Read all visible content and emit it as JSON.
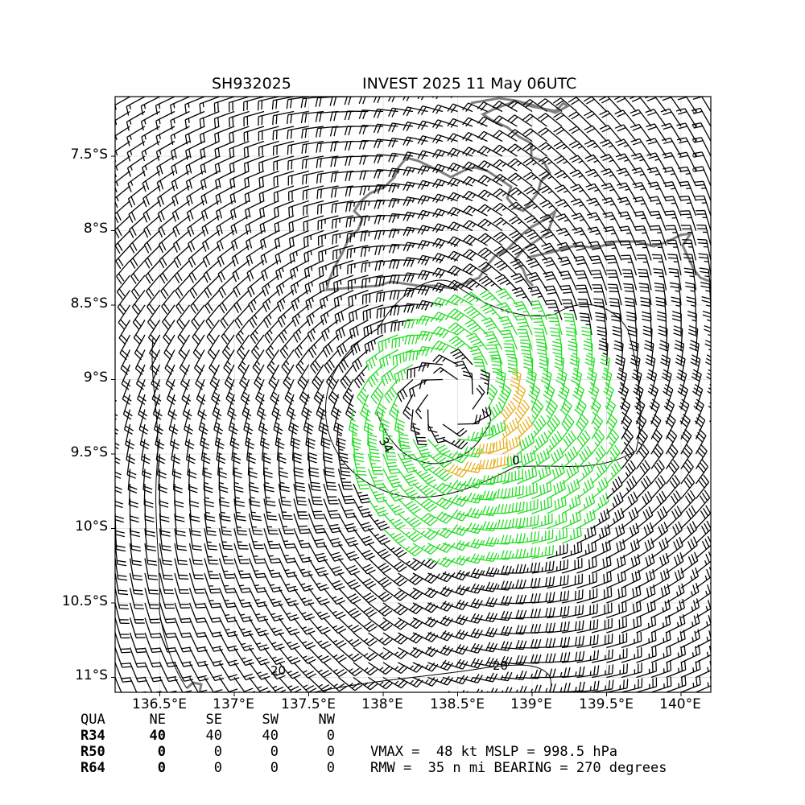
{
  "title_left": "SH932025",
  "title_right": "INVEST 2025 11 May 06UTC",
  "map": {
    "lon_range": [
      136.2,
      140.2
    ],
    "lat_range": [
      -11.1,
      -7.1
    ],
    "lon_ticks": [
      {
        "value": 136.5,
        "label": "136.5°E"
      },
      {
        "value": 137.0,
        "label": "137°E"
      },
      {
        "value": 137.5,
        "label": "137.5°E"
      },
      {
        "value": 138.0,
        "label": "138°E"
      },
      {
        "value": 138.5,
        "label": "138.5°E"
      },
      {
        "value": 139.0,
        "label": "139°E"
      },
      {
        "value": 139.5,
        "label": "139.5°E"
      },
      {
        "value": 140.0,
        "label": "140°E"
      }
    ],
    "lat_ticks": [
      {
        "value": -7.5,
        "label": "7.5°S"
      },
      {
        "value": -8.0,
        "label": "8°S"
      },
      {
        "value": -8.5,
        "label": "8.5°S"
      },
      {
        "value": -9.0,
        "label": "9°S"
      },
      {
        "value": -9.5,
        "label": "9.5°S"
      },
      {
        "value": -10.0,
        "label": "10°S"
      },
      {
        "value": -10.5,
        "label": "10.5°S"
      },
      {
        "value": -11.0,
        "label": "11°S"
      }
    ],
    "grid": true,
    "storm_center": {
      "lon": 138.45,
      "lat": -9.15
    },
    "contour_labels": [
      "34",
      "20",
      "20",
      "0"
    ],
    "wind_colors": {
      "below_34": "#000000",
      "r34": "#22dd22",
      "r50": "#e8b020"
    },
    "coastline_color": "#808080"
  },
  "table": {
    "header": [
      "QUA",
      "NE",
      "SE",
      "SW",
      "NW"
    ],
    "rows": [
      {
        "label": "R34",
        "values": [
          "40",
          "40",
          "40",
          "0"
        ]
      },
      {
        "label": "R50",
        "values": [
          "0",
          "0",
          "0",
          "0"
        ]
      },
      {
        "label": "R64",
        "values": [
          "0",
          "0",
          "0",
          "0"
        ]
      }
    ]
  },
  "summary": {
    "line1": "VMAX =  48 kt MSLP = 998.5 hPa",
    "line2": "RMW =  35 n mi BEARING = 270 degrees"
  }
}
